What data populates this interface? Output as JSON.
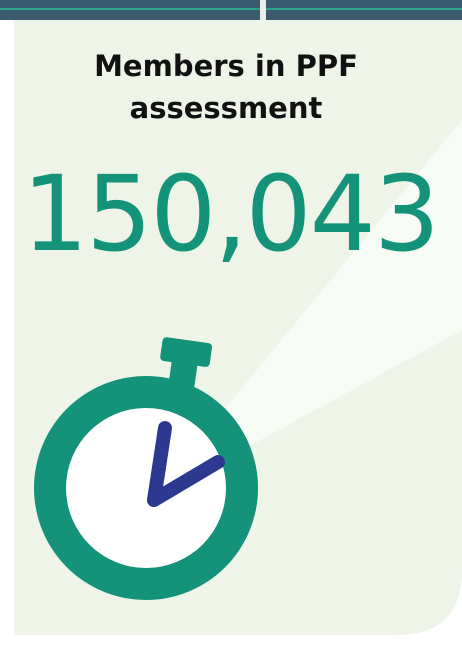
{
  "heading": {
    "lines": [
      "Members in PPF",
      "assessment"
    ]
  },
  "figure": "150,043"
}
